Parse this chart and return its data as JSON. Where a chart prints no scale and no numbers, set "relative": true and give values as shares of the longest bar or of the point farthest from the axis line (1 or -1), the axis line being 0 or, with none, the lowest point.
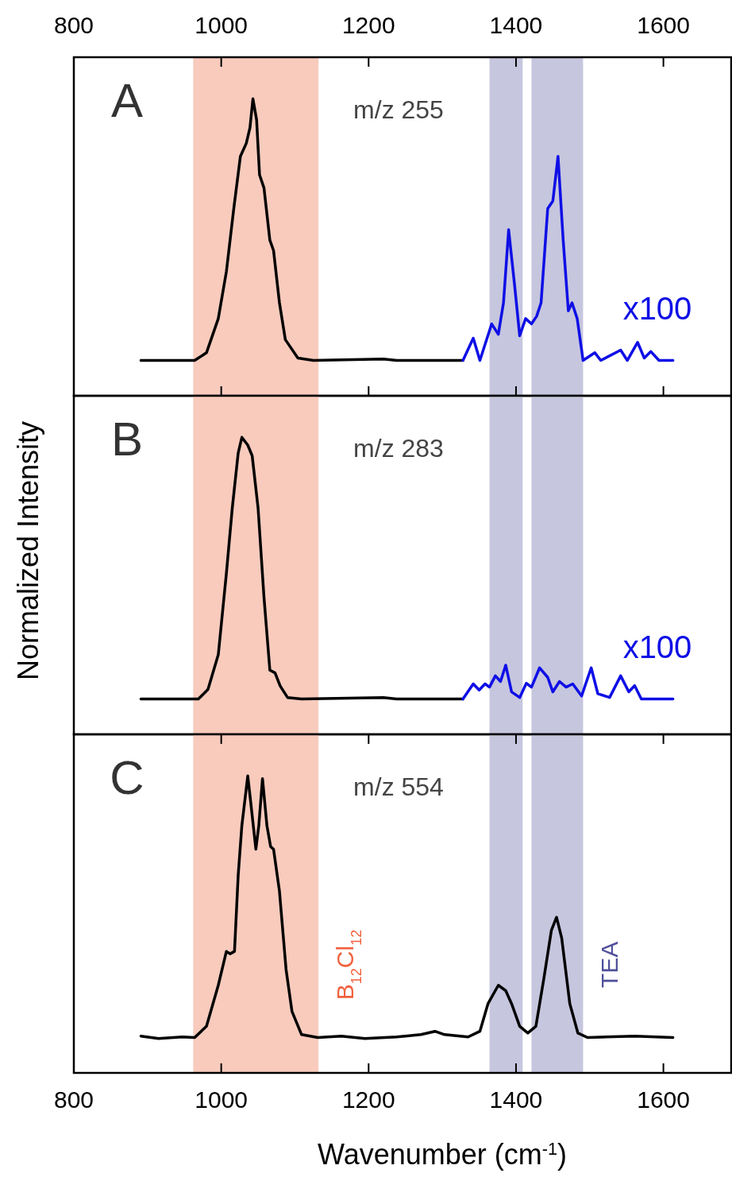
{
  "chart_data": [
    {
      "type": "line",
      "relative": true,
      "annotations": [
        "A",
        "m/z 255",
        "x100"
      ],
      "xlim": [
        800,
        1692
      ],
      "xticks": [
        800,
        1000,
        1200,
        1400,
        1600
      ],
      "bands": [
        {
          "axis": "x",
          "from": 962,
          "to": 1132,
          "color": "#f8cbbd"
        },
        {
          "axis": "x",
          "from": 1364,
          "to": 1409,
          "color": "#c6c6df"
        },
        {
          "axis": "x",
          "from": 1421,
          "to": 1491,
          "color": "#c6c6df"
        }
      ],
      "series": [
        {
          "color": "#000000",
          "x": [
            891,
            964,
            980,
            996,
            1007,
            1017,
            1026,
            1034,
            1039,
            1043,
            1048,
            1052,
            1058,
            1066,
            1071,
            1079,
            1087,
            1104,
            1125,
            1220,
            1238,
            1328
          ],
          "values": [
            0.119,
            0.119,
            0.145,
            0.26,
            0.418,
            0.63,
            0.806,
            0.85,
            0.903,
            1.0,
            0.929,
            0.744,
            0.7,
            0.524,
            0.489,
            0.313,
            0.189,
            0.127,
            0.119,
            0.124,
            0.119,
            0.119
          ]
        },
        {
          "color": "#0f0fe6",
          "x": [
            1328,
            1342,
            1351,
            1367,
            1376,
            1383,
            1390,
            1398,
            1405,
            1413,
            1421,
            1428,
            1434,
            1443,
            1450,
            1457,
            1464,
            1471,
            1476,
            1483,
            1491,
            1507,
            1515,
            1542,
            1551,
            1565,
            1574,
            1583,
            1594,
            1613
          ],
          "values": [
            0.119,
            0.194,
            0.119,
            0.242,
            0.207,
            0.313,
            0.559,
            0.374,
            0.202,
            0.26,
            0.242,
            0.268,
            0.313,
            0.63,
            0.656,
            0.806,
            0.524,
            0.286,
            0.313,
            0.26,
            0.119,
            0.145,
            0.119,
            0.154,
            0.119,
            0.18,
            0.127,
            0.149,
            0.119,
            0.119
          ]
        }
      ]
    },
    {
      "type": "line",
      "relative": true,
      "annotations": [
        "B",
        "m/z 283",
        "x100"
      ],
      "ylabel": "Normalized Intensity",
      "xlim": [
        800,
        1692
      ],
      "tick_labels": false,
      "bands": [
        {
          "axis": "x",
          "from": 962,
          "to": 1132,
          "color": "#f8cbbd"
        },
        {
          "axis": "x",
          "from": 1364,
          "to": 1409,
          "color": "#c6c6df"
        },
        {
          "axis": "x",
          "from": 1421,
          "to": 1491,
          "color": "#c6c6df"
        }
      ],
      "series": [
        {
          "color": "#000000",
          "x": [
            891,
            969,
            982,
            996,
            1007,
            1015,
            1023,
            1028,
            1036,
            1042,
            1050,
            1058,
            1066,
            1073,
            1080,
            1090,
            1109,
            1220,
            1238,
            1328
          ],
          "values": [
            0.119,
            0.119,
            0.151,
            0.268,
            0.542,
            0.762,
            0.947,
            1.0,
            0.974,
            0.938,
            0.762,
            0.462,
            0.216,
            0.207,
            0.163,
            0.124,
            0.119,
            0.124,
            0.119,
            0.119
          ]
        },
        {
          "color": "#0f0fe6",
          "x": [
            1328,
            1342,
            1350,
            1358,
            1364,
            1372,
            1379,
            1386,
            1394,
            1405,
            1414,
            1421,
            1432,
            1443,
            1450,
            1459,
            1468,
            1477,
            1489,
            1502,
            1511,
            1527,
            1542,
            1553,
            1561,
            1570,
            1613
          ],
          "values": [
            0.119,
            0.17,
            0.149,
            0.17,
            0.159,
            0.197,
            0.178,
            0.233,
            0.143,
            0.124,
            0.172,
            0.159,
            0.224,
            0.192,
            0.143,
            0.178,
            0.159,
            0.17,
            0.129,
            0.224,
            0.137,
            0.124,
            0.197,
            0.143,
            0.164,
            0.119,
            0.119
          ]
        }
      ]
    },
    {
      "type": "line",
      "relative": true,
      "annotations": [
        "C",
        "m/z 554"
      ],
      "xlabel": "Wavenumber (cm$^{-1}$)",
      "xlim": [
        800,
        1692
      ],
      "xticks": [
        800,
        1000,
        1200,
        1400,
        1600
      ],
      "bands": [
        {
          "axis": "x",
          "from": 962,
          "to": 1132,
          "color": "#f8cbbd",
          "label": "B$_{12}$Cl$_{12}$"
        },
        {
          "axis": "x",
          "from": 1364,
          "to": 1409,
          "color": "#c6c6df"
        },
        {
          "axis": "x",
          "from": 1421,
          "to": 1491,
          "color": "#c6c6df",
          "label": "TEA"
        }
      ],
      "series": [
        {
          "color": "#000000",
          "x": [
            891,
            915,
            947,
            964,
            980,
            996,
            1007,
            1012,
            1018,
            1023,
            1028,
            1036,
            1040,
            1047,
            1051,
            1056,
            1062,
            1067,
            1071,
            1079,
            1088,
            1096,
            1109,
            1131,
            1163,
            1195,
            1238,
            1271,
            1290,
            1303,
            1335,
            1351,
            1362,
            1376,
            1386,
            1394,
            1405,
            1416,
            1427,
            1438,
            1448,
            1455,
            1462,
            1473,
            1484,
            1497,
            1561,
            1613
          ],
          "values": [
            0.124,
            0.116,
            0.121,
            0.119,
            0.157,
            0.295,
            0.409,
            0.401,
            0.409,
            0.665,
            0.833,
            1.0,
            0.912,
            0.753,
            0.833,
            0.991,
            0.833,
            0.762,
            0.753,
            0.612,
            0.348,
            0.207,
            0.129,
            0.119,
            0.124,
            0.116,
            0.121,
            0.129,
            0.14,
            0.129,
            0.121,
            0.14,
            0.233,
            0.295,
            0.277,
            0.233,
            0.157,
            0.134,
            0.157,
            0.321,
            0.48,
            0.524,
            0.454,
            0.233,
            0.134,
            0.119,
            0.124,
            0.119
          ]
        }
      ]
    }
  ]
}
